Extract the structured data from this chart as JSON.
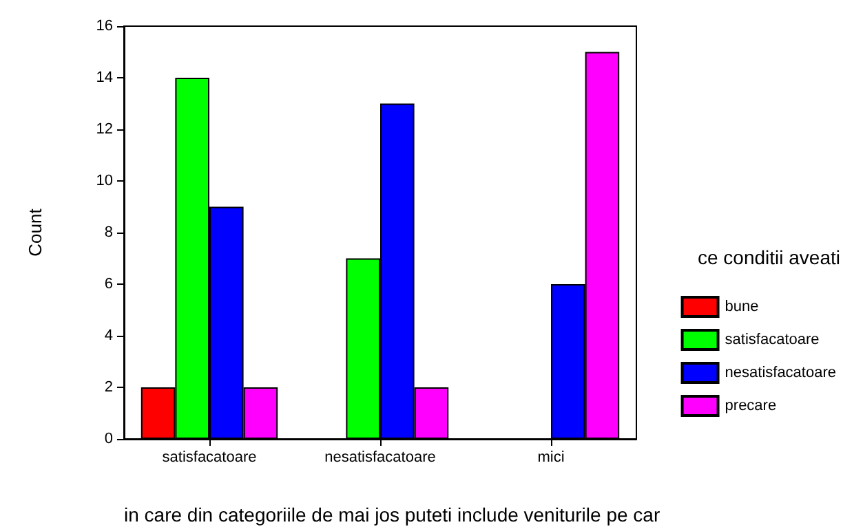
{
  "chart_data": {
    "type": "bar",
    "xlabel": "in care din categoriile de mai jos puteti include veniturile pe car",
    "ylabel": "Count",
    "legend_title": "ce conditii aveati",
    "categories": [
      "satisfacatoare",
      "nesatisfacatoare",
      "mici"
    ],
    "series": [
      {
        "name": "bune",
        "color": "#ff0000",
        "values": [
          2,
          null,
          null
        ]
      },
      {
        "name": "satisfacatoare",
        "color": "#00ff00",
        "values": [
          14,
          7,
          null
        ]
      },
      {
        "name": "nesatisfacatoare",
        "color": "#0000ff",
        "values": [
          9,
          13,
          6
        ]
      },
      {
        "name": "precare",
        "color": "#ff00ff",
        "values": [
          2,
          2,
          15
        ]
      }
    ],
    "ylim": [
      0,
      16
    ],
    "yticks": [
      0,
      2,
      4,
      6,
      8,
      10,
      12,
      14,
      16
    ],
    "grid": false,
    "legend": "right"
  }
}
